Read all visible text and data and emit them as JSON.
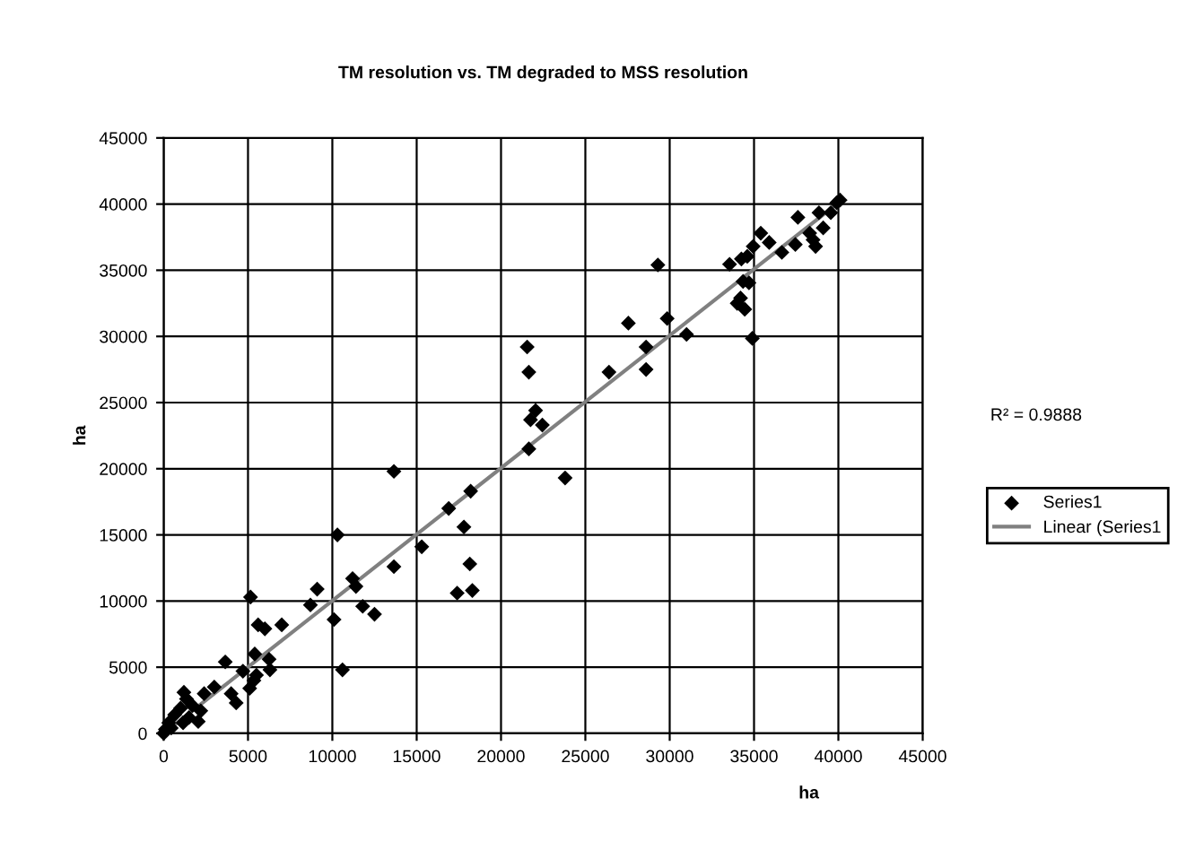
{
  "chart_data": {
    "type": "scatter",
    "title": "TM resolution vs. TM degraded to MSS resolution",
    "xlabel": "ha",
    "ylabel": "ha",
    "xlim": [
      0,
      45000
    ],
    "xticks": [
      0,
      5000,
      10000,
      15000,
      20000,
      25000,
      30000,
      35000,
      40000,
      45000
    ],
    "ylim": [
      0,
      45000
    ],
    "yticks": [
      0,
      5000,
      10000,
      15000,
      20000,
      25000,
      30000,
      35000,
      40000,
      45000
    ],
    "grid": true,
    "legend": "right",
    "annotations": [
      "R² = 0.9888"
    ],
    "series": [
      {
        "name": "Series1",
        "color": "#000000",
        "marker": "diamond",
        "x": [
          13650,
          10300,
          23800,
          17800,
          15300,
          13650,
          18150,
          18300,
          17400,
          16900,
          18200,
          11200,
          11400,
          11800,
          12500,
          9100,
          8700,
          10100,
          10600,
          5150,
          5600,
          6000,
          7000,
          3650,
          5400,
          6250,
          6300,
          5500,
          5100,
          5350,
          4000,
          4300,
          4700,
          3000,
          2400,
          1200,
          2200,
          2050,
          1700,
          1350,
          1000,
          650,
          300,
          100,
          0,
          450,
          1500,
          1150,
          21550,
          21650,
          22050,
          21750,
          22450,
          21650,
          29300,
          27550,
          29850,
          28600,
          28600,
          26400,
          31000,
          34900,
          33550,
          34250,
          34600,
          34950,
          35400,
          35900,
          36650,
          37450,
          37600,
          38500,
          38650,
          38850,
          39550,
          39900,
          40100,
          39100,
          38300,
          34200,
          34000,
          34450,
          34700,
          34350
        ],
        "values": [
          19800,
          15000,
          19300,
          15600,
          14100,
          12600,
          12800,
          10800,
          10600,
          17000,
          18300,
          11700,
          11100,
          9600,
          9000,
          10900,
          9700,
          8600,
          4800,
          10300,
          8200,
          7900,
          8200,
          5400,
          6000,
          5600,
          4800,
          4400,
          3400,
          4000,
          3000,
          2300,
          4700,
          3500,
          3000,
          3100,
          1700,
          900,
          2100,
          2600,
          1900,
          1400,
          800,
          300,
          0,
          400,
          1200,
          800,
          29200,
          27300,
          24400,
          23700,
          23300,
          21500,
          35400,
          31000,
          31350,
          29200,
          27500,
          27300,
          30150,
          29850,
          35450,
          35850,
          36050,
          36800,
          37800,
          37100,
          36350,
          36950,
          39000,
          37300,
          36800,
          39350,
          39350,
          40100,
          40300,
          38200,
          37800,
          32900,
          32500,
          32050,
          34050,
          34150
        ]
      },
      {
        "name": "Linear (Series1",
        "color": "#808080",
        "type": "line",
        "x": [
          0,
          40100
        ],
        "values": [
          0,
          40200
        ]
      }
    ]
  }
}
